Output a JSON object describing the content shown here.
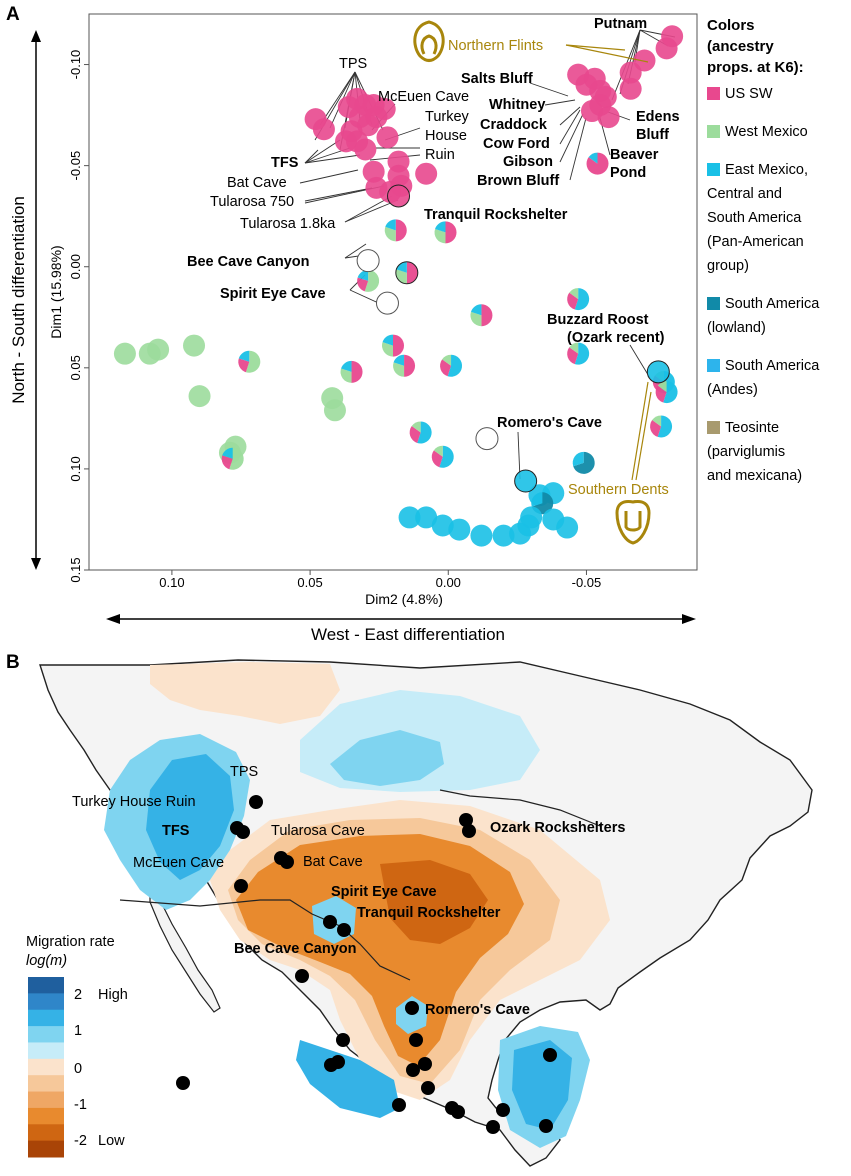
{
  "panel_a": {
    "letter": "A"
  },
  "panel_b": {
    "letter": "B"
  },
  "chart_data": [
    {
      "type": "scatter",
      "xlabel": "Dim2 (4.8%)",
      "ylabel": "Dim1 (15.98%)",
      "xlim": [
        0.13,
        -0.09
      ],
      "ylim": [
        -0.125,
        0.15
      ],
      "x_ticks": [
        "0.10",
        "0.05",
        "0.00",
        "-0.05"
      ],
      "y_ticks": [
        "-0.10",
        "-0.05",
        "0.00",
        "0.05",
        "0.10",
        "0.15"
      ],
      "axis_arrows": {
        "horizontal": "West - East differentiation",
        "vertical": "North - South differentiation"
      },
      "legend": {
        "title": [
          "Colors",
          "(ancestry",
          "props. at K6):"
        ],
        "entries": [
          {
            "label": [
              "US SW"
            ],
            "color": "#e8488e"
          },
          {
            "label": [
              "West Mexico"
            ],
            "color": "#9cdc9c"
          },
          {
            "label": [
              "East Mexico,",
              "Central and",
              "South America",
              "(Pan-American",
              "group)"
            ],
            "color": "#19c0e6"
          },
          {
            "label": [
              "South America",
              "(lowland)"
            ],
            "color": "#118aa8"
          },
          {
            "label": [
              "South America",
              "(Andes)"
            ],
            "color": "#2db4ec"
          },
          {
            "label": [
              "Teosinte",
              "(parviglumis",
              "and mexicana)"
            ],
            "color": "#a89a6e"
          }
        ]
      },
      "annotations": {
        "northern_flints": "Northern Flints",
        "southern_dents": "Southern Dents",
        "sites": [
          "TPS",
          "McEuen Cave",
          "Turkey",
          "House",
          "Ruin",
          "TFS",
          "Bat Cave",
          "Tularosa 750",
          "Tularosa 1.8ka",
          "Tranquil Rockshelter",
          "Bee Cave Canyon",
          "Spirit Eye Cave",
          "Putnam",
          "Salts Bluff",
          "Whitney",
          "Craddock",
          "Cow Ford",
          "Gibson",
          "Brown Bluff",
          "Edens",
          "Bluff",
          "Beaver",
          "Pond",
          "Buzzard Roost",
          "(Ozark recent)",
          "Romero's Cave"
        ]
      },
      "points": [
        {
          "x": 0.048,
          "y": -0.073,
          "g": "usw"
        },
        {
          "x": 0.045,
          "y": -0.068,
          "g": "usw"
        },
        {
          "x": 0.033,
          "y": -0.083,
          "g": "usw"
        },
        {
          "x": 0.03,
          "y": -0.08,
          "g": "usw"
        },
        {
          "x": 0.036,
          "y": -0.079,
          "g": "usw"
        },
        {
          "x": 0.027,
          "y": -0.08,
          "g": "usw"
        },
        {
          "x": 0.023,
          "y": -0.078,
          "g": "usw"
        },
        {
          "x": 0.032,
          "y": -0.074,
          "g": "usw"
        },
        {
          "x": 0.035,
          "y": -0.067,
          "g": "usw"
        },
        {
          "x": 0.029,
          "y": -0.07,
          "g": "usw"
        },
        {
          "x": 0.026,
          "y": -0.074,
          "g": "usw"
        },
        {
          "x": 0.037,
          "y": -0.062,
          "g": "usw"
        },
        {
          "x": 0.033,
          "y": -0.062,
          "g": "usw"
        },
        {
          "x": 0.022,
          "y": -0.064,
          "g": "usw"
        },
        {
          "x": 0.03,
          "y": -0.058,
          "g": "usw"
        },
        {
          "x": 0.018,
          "y": -0.052,
          "g": "usw"
        },
        {
          "x": 0.027,
          "y": -0.047,
          "g": "usw"
        },
        {
          "x": 0.018,
          "y": -0.045,
          "g": "usw"
        },
        {
          "x": 0.026,
          "y": -0.039,
          "g": "usw"
        },
        {
          "x": 0.021,
          "y": -0.037,
          "g": "usw"
        },
        {
          "x": 0.017,
          "y": -0.04,
          "g": "usw"
        },
        {
          "x": 0.018,
          "y": -0.035,
          "g": "usw",
          "outline": true
        },
        {
          "x": 0.008,
          "y": -0.046,
          "g": "usw"
        },
        {
          "x": -0.081,
          "y": -0.114,
          "g": "usw"
        },
        {
          "x": -0.079,
          "y": -0.108,
          "g": "usw"
        },
        {
          "x": -0.071,
          "y": -0.102,
          "g": "usw"
        },
        {
          "x": -0.066,
          "y": -0.096,
          "g": "usw"
        },
        {
          "x": -0.066,
          "y": -0.088,
          "g": "usw"
        },
        {
          "x": -0.047,
          "y": -0.095,
          "g": "usw"
        },
        {
          "x": -0.05,
          "y": -0.09,
          "g": "usw"
        },
        {
          "x": -0.053,
          "y": -0.093,
          "g": "usw"
        },
        {
          "x": -0.055,
          "y": -0.087,
          "g": "usw"
        },
        {
          "x": -0.057,
          "y": -0.084,
          "g": "usw"
        },
        {
          "x": -0.055,
          "y": -0.08,
          "g": "usw"
        },
        {
          "x": -0.052,
          "y": -0.077,
          "g": "usw"
        },
        {
          "x": -0.058,
          "y": -0.074,
          "g": "usw"
        },
        {
          "x": -0.054,
          "y": -0.051,
          "g": "usw_mix"
        },
        {
          "x": 0.019,
          "y": -0.018,
          "g": "mix_a"
        },
        {
          "x": 0.001,
          "y": -0.017,
          "g": "mix_a"
        },
        {
          "x": 0.029,
          "y": 0.007,
          "g": "mix_b"
        },
        {
          "x": 0.015,
          "y": 0.003,
          "g": "mix_a",
          "outline": true
        },
        {
          "x": -0.012,
          "y": 0.024,
          "g": "mix_a"
        },
        {
          "x": -0.047,
          "y": 0.016,
          "g": "mix_c"
        },
        {
          "x": 0.02,
          "y": 0.039,
          "g": "mix_a"
        },
        {
          "x": -0.047,
          "y": 0.043,
          "g": "mix_c"
        },
        {
          "x": 0.072,
          "y": 0.047,
          "g": "mix_b"
        },
        {
          "x": 0.035,
          "y": 0.052,
          "g": "mix_a"
        },
        {
          "x": 0.016,
          "y": 0.049,
          "g": "mix_a"
        },
        {
          "x": -0.001,
          "y": 0.049,
          "g": "mix_c"
        },
        {
          "x": 0.042,
          "y": 0.065,
          "g": "wmx"
        },
        {
          "x": 0.041,
          "y": 0.071,
          "g": "wmx"
        },
        {
          "x": 0.01,
          "y": 0.082,
          "g": "mix_c"
        },
        {
          "x": 0.002,
          "y": 0.094,
          "g": "mix_c"
        },
        {
          "x": -0.078,
          "y": 0.057,
          "g": "mix_c"
        },
        {
          "x": -0.079,
          "y": 0.062,
          "g": "mix_c"
        },
        {
          "x": -0.077,
          "y": 0.079,
          "g": "mix_c"
        },
        {
          "x": -0.049,
          "y": 0.097,
          "g": "sal"
        },
        {
          "x": -0.033,
          "y": 0.113,
          "g": "pan"
        },
        {
          "x": -0.038,
          "y": 0.112,
          "g": "pan"
        },
        {
          "x": -0.034,
          "y": 0.117,
          "g": "sal"
        },
        {
          "x": 0.117,
          "y": 0.043,
          "g": "wmx"
        },
        {
          "x": 0.108,
          "y": 0.043,
          "g": "wmx"
        },
        {
          "x": 0.105,
          "y": 0.041,
          "g": "wmx"
        },
        {
          "x": 0.092,
          "y": 0.039,
          "g": "wmx"
        },
        {
          "x": 0.09,
          "y": 0.064,
          "g": "wmx"
        },
        {
          "x": 0.077,
          "y": 0.089,
          "g": "wmx"
        },
        {
          "x": 0.079,
          "y": 0.092,
          "g": "wmx"
        },
        {
          "x": 0.078,
          "y": 0.095,
          "g": "mix_b"
        },
        {
          "x": 0.014,
          "y": 0.124,
          "g": "pan"
        },
        {
          "x": 0.008,
          "y": 0.124,
          "g": "pan"
        },
        {
          "x": 0.002,
          "y": 0.128,
          "g": "pan"
        },
        {
          "x": -0.004,
          "y": 0.13,
          "g": "pan"
        },
        {
          "x": -0.012,
          "y": 0.133,
          "g": "pan"
        },
        {
          "x": -0.02,
          "y": 0.133,
          "g": "pan"
        },
        {
          "x": -0.026,
          "y": 0.132,
          "g": "pan"
        },
        {
          "x": -0.029,
          "y": 0.128,
          "g": "pan"
        },
        {
          "x": -0.043,
          "y": 0.129,
          "g": "pan"
        },
        {
          "x": -0.038,
          "y": 0.125,
          "g": "pan"
        },
        {
          "x": -0.03,
          "y": 0.124,
          "g": "pan"
        },
        {
          "x": -0.028,
          "y": 0.106,
          "g": "pan",
          "outline": true
        },
        {
          "x": -0.076,
          "y": 0.052,
          "g": "pan",
          "outline": true
        },
        {
          "x": 0.029,
          "y": -0.003,
          "g": "empty"
        },
        {
          "x": 0.022,
          "y": 0.018,
          "g": "empty"
        },
        {
          "x": -0.014,
          "y": 0.085,
          "g": "empty"
        }
      ]
    },
    {
      "type": "heatmap",
      "description_free": true,
      "legend_title": [
        "Migration rate",
        "log(m)"
      ],
      "legend_ticks": [
        {
          "value": "2",
          "label": "High"
        },
        {
          "value": "1",
          "label": ""
        },
        {
          "value": "0",
          "label": ""
        },
        {
          "value": "-1",
          "label": ""
        },
        {
          "value": "-2",
          "label": "Low"
        }
      ],
      "scale_colors": [
        "#1f5f9e",
        "#2f86c9",
        "#35b2e6",
        "#7fd4f0",
        "#c6ecf8",
        "#fbe3cc",
        "#f6c89a",
        "#efa765",
        "#e88a2e",
        "#cf6612",
        "#a94407"
      ],
      "site_labels": [
        {
          "text": "TPS",
          "bold": false
        },
        {
          "text": "Turkey House Ruin",
          "bold": false
        },
        {
          "text": "TFS",
          "bold": true
        },
        {
          "text": "Tularosa Cave",
          "bold": false
        },
        {
          "text": "Bat Cave",
          "bold": false
        },
        {
          "text": "McEuen Cave",
          "bold": false
        },
        {
          "text": "Ozark Rockshelters",
          "bold": true
        },
        {
          "text": "Spirit Eye Cave",
          "bold": true
        },
        {
          "text": "Tranquil Rockshelter",
          "bold": true
        },
        {
          "text": "Bee Cave Canyon",
          "bold": true
        },
        {
          "text": "Romero's Cave",
          "bold": true
        }
      ]
    }
  ],
  "colors": {
    "usw": "#e8488e",
    "wmx": "#9cdc9c",
    "pan": "#19c0e6",
    "slow": "#118aa8",
    "sand": "#2db4ec",
    "teo": "#a89a6e",
    "gold": "#a8860c",
    "blue_area": "#35b2e6",
    "orange_area": "#e88a2e"
  }
}
